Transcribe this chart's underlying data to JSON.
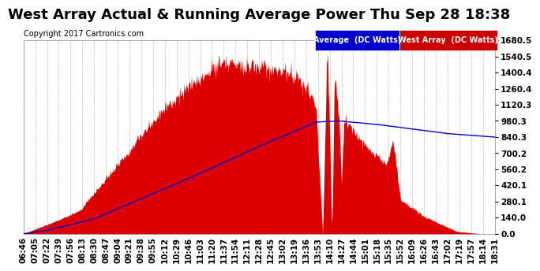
{
  "title": "West Array Actual & Running Average Power Thu Sep 28 18:38",
  "copyright": "Copyright 2017 Cartronics.com",
  "legend_avg": "Average  (DC Watts)",
  "legend_west": "West Array  (DC Watts)",
  "ylabel_ticks": [
    0.0,
    140.0,
    280.1,
    420.1,
    560.2,
    700.2,
    840.3,
    980.3,
    1120.3,
    1260.4,
    1400.4,
    1540.5,
    1680.5
  ],
  "ylabel_labels": [
    "0.0",
    "140.0",
    "280.1",
    "420.1",
    "560.2",
    "700.2",
    "840.3",
    "980.3",
    "1120.3",
    "1260.4",
    "1400.4",
    "1540.5",
    "1680.5"
  ],
  "ymax": 1680.5,
  "ymin": 0.0,
  "background_color": "#ffffff",
  "plot_bg_color": "#ffffff",
  "grid_color": "#aaaaaa",
  "fill_color": "#dd0000",
  "line_color": "#0000cc",
  "title_color": "#000000",
  "tick_color": "#000000",
  "copyright_color": "#000000",
  "xtick_labels": [
    "06:46",
    "07:05",
    "07:22",
    "07:39",
    "07:56",
    "08:13",
    "08:30",
    "08:47",
    "09:04",
    "09:21",
    "09:38",
    "09:55",
    "10:12",
    "10:29",
    "10:46",
    "11:03",
    "11:20",
    "11:37",
    "11:54",
    "12:11",
    "12:28",
    "12:45",
    "13:02",
    "13:19",
    "13:36",
    "13:53",
    "14:10",
    "14:27",
    "14:44",
    "15:01",
    "15:18",
    "15:35",
    "15:52",
    "16:09",
    "16:26",
    "16:43",
    "17:02",
    "17:19",
    "17:57",
    "18:14",
    "18:31"
  ],
  "title_fontsize": 13,
  "copyright_fontsize": 7,
  "tick_fontsize": 7.5,
  "avg_legend_bg": "#0000cc",
  "west_legend_bg": "#cc0000"
}
